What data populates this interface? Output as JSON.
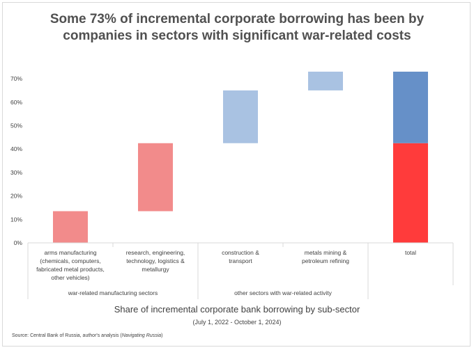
{
  "chart_data": {
    "type": "waterfall",
    "title": [
      "Some 73% of incremental corporate borrowing has been by",
      "companies in sectors with significant war-related costs"
    ],
    "ylim": [
      0,
      73
    ],
    "yticks": [
      0,
      10,
      20,
      30,
      40,
      50,
      60,
      70
    ],
    "ytick_labels": [
      "0%",
      "10%",
      "20%",
      "30%",
      "40%",
      "50%",
      "60%",
      "70%"
    ],
    "grid": false,
    "categories": [
      [
        "arms manufacturing",
        "(chemicals, computers,",
        "fabricated metal products,",
        "other vehicles)"
      ],
      [
        "research, engineering,",
        "technology, logistics &",
        "metallurgy"
      ],
      [
        "construction &",
        "transport"
      ],
      [
        "metals mining &",
        "petroleum refining"
      ],
      [
        "total"
      ]
    ],
    "groups": [
      {
        "label": "war-related manufacturing sectors",
        "span": [
          0,
          1
        ]
      },
      {
        "label": "other sectors with war-related activity",
        "span": [
          2,
          3
        ]
      }
    ],
    "bars": [
      {
        "base": 0,
        "top": 13.5,
        "color": "#f28b8b"
      },
      {
        "base": 13.5,
        "top": 42.5,
        "color": "#f28b8b"
      },
      {
        "base": 42.5,
        "top": 65,
        "color": "#a9c2e2"
      },
      {
        "base": 65,
        "top": 73,
        "color": "#a9c2e2"
      }
    ],
    "total_stack": [
      {
        "base": 0,
        "top": 42.5,
        "color": "#ff3b3b"
      },
      {
        "base": 42.5,
        "top": 73,
        "color": "#6690c8"
      }
    ],
    "xlabel": "Share of incremental corporate bank borrowing by sub-sector",
    "xlabel_sub": "(July 1, 2022 - October 1, 2024)"
  },
  "source": {
    "prefix": "Source: Central Bank of Russia, author's analysis (",
    "italic": "Navigating Russia",
    "suffix": ")"
  }
}
